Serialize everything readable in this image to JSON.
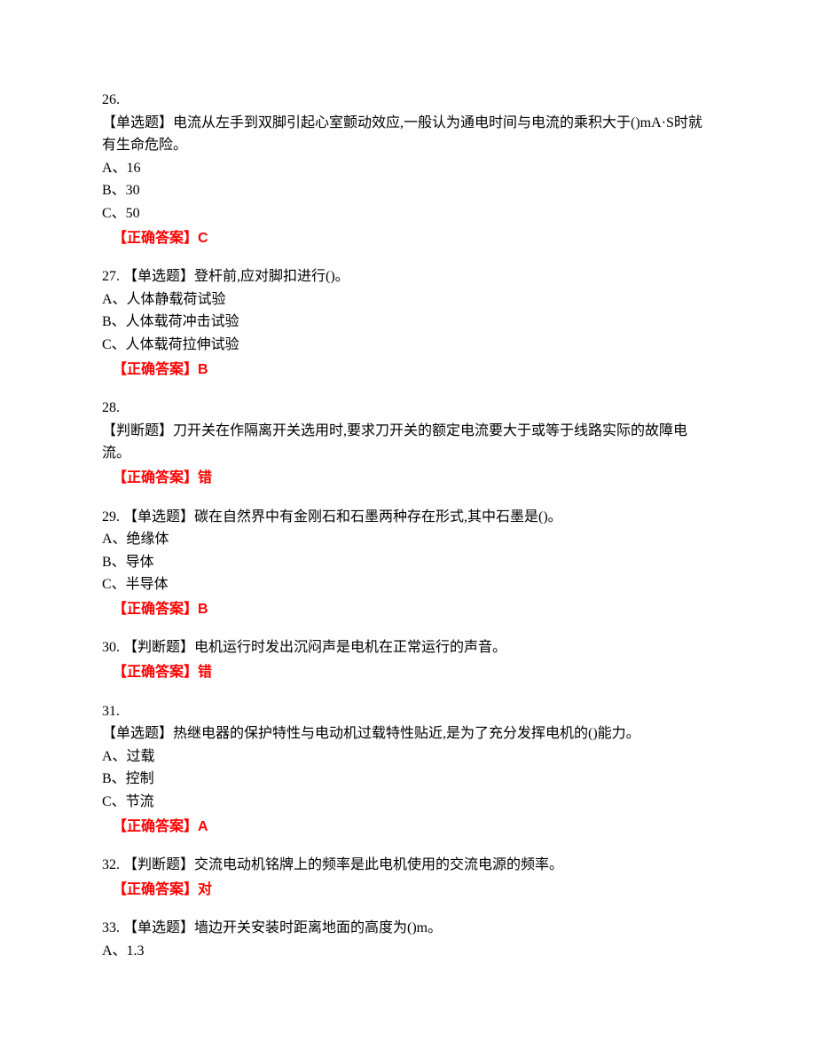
{
  "text_color": "#000000",
  "answer_color": "#ff0000",
  "background_color": "#ffffff",
  "font_family": "SimSun",
  "font_size": 16,
  "questions": [
    {
      "number": "26.",
      "type_label": "【单选题】",
      "text": "电流从左手到双脚引起心室颤动效应,一般认为通电时间与电流的乘积大于()mA·S时就有生命危险。",
      "options": [
        "A、16",
        "B、30",
        "C、50"
      ],
      "answer_label": "【正确答案】",
      "answer": "C"
    },
    {
      "number": "27.",
      "type_label": "【单选题】",
      "text": "登杆前,应对脚扣进行()。",
      "options": [
        "A、人体静载荷试验",
        "B、人体载荷冲击试验",
        "C、人体载荷拉伸试验"
      ],
      "answer_label": "【正确答案】",
      "answer": "B"
    },
    {
      "number": "28.",
      "type_label": "【判断题】",
      "text": "刀开关在作隔离开关选用时,要求刀开关的额定电流要大于或等于线路实际的故障电流。",
      "options": [],
      "answer_label": "【正确答案】",
      "answer": "错"
    },
    {
      "number": "29.",
      "type_label": "【单选题】",
      "text": "碳在自然界中有金刚石和石墨两种存在形式,其中石墨是()。",
      "options": [
        "A、绝缘体",
        "B、导体",
        "C、半导体"
      ],
      "answer_label": "【正确答案】",
      "answer": "B"
    },
    {
      "number": "30.",
      "type_label": "【判断题】",
      "text": "电机运行时发出沉闷声是电机在正常运行的声音。",
      "options": [],
      "answer_label": "【正确答案】",
      "answer": "错"
    },
    {
      "number": "31.",
      "type_label": "【单选题】",
      "text": "热继电器的保护特性与电动机过载特性贴近,是为了充分发挥电机的()能力。",
      "options": [
        "A、过载",
        "B、控制",
        "C、节流"
      ],
      "answer_label": "【正确答案】",
      "answer": "A"
    },
    {
      "number": "32.",
      "type_label": "【判断题】",
      "text": "交流电动机铭牌上的频率是此电机使用的交流电源的频率。",
      "options": [],
      "answer_label": "【正确答案】",
      "answer": "对"
    },
    {
      "number": "33.",
      "type_label": "【单选题】",
      "text": "墙边开关安装时距离地面的高度为()m。",
      "options": [
        "A、1.3"
      ],
      "answer_label": "",
      "answer": ""
    }
  ],
  "multiline_numbers": [
    "26.",
    "28.",
    "31."
  ]
}
